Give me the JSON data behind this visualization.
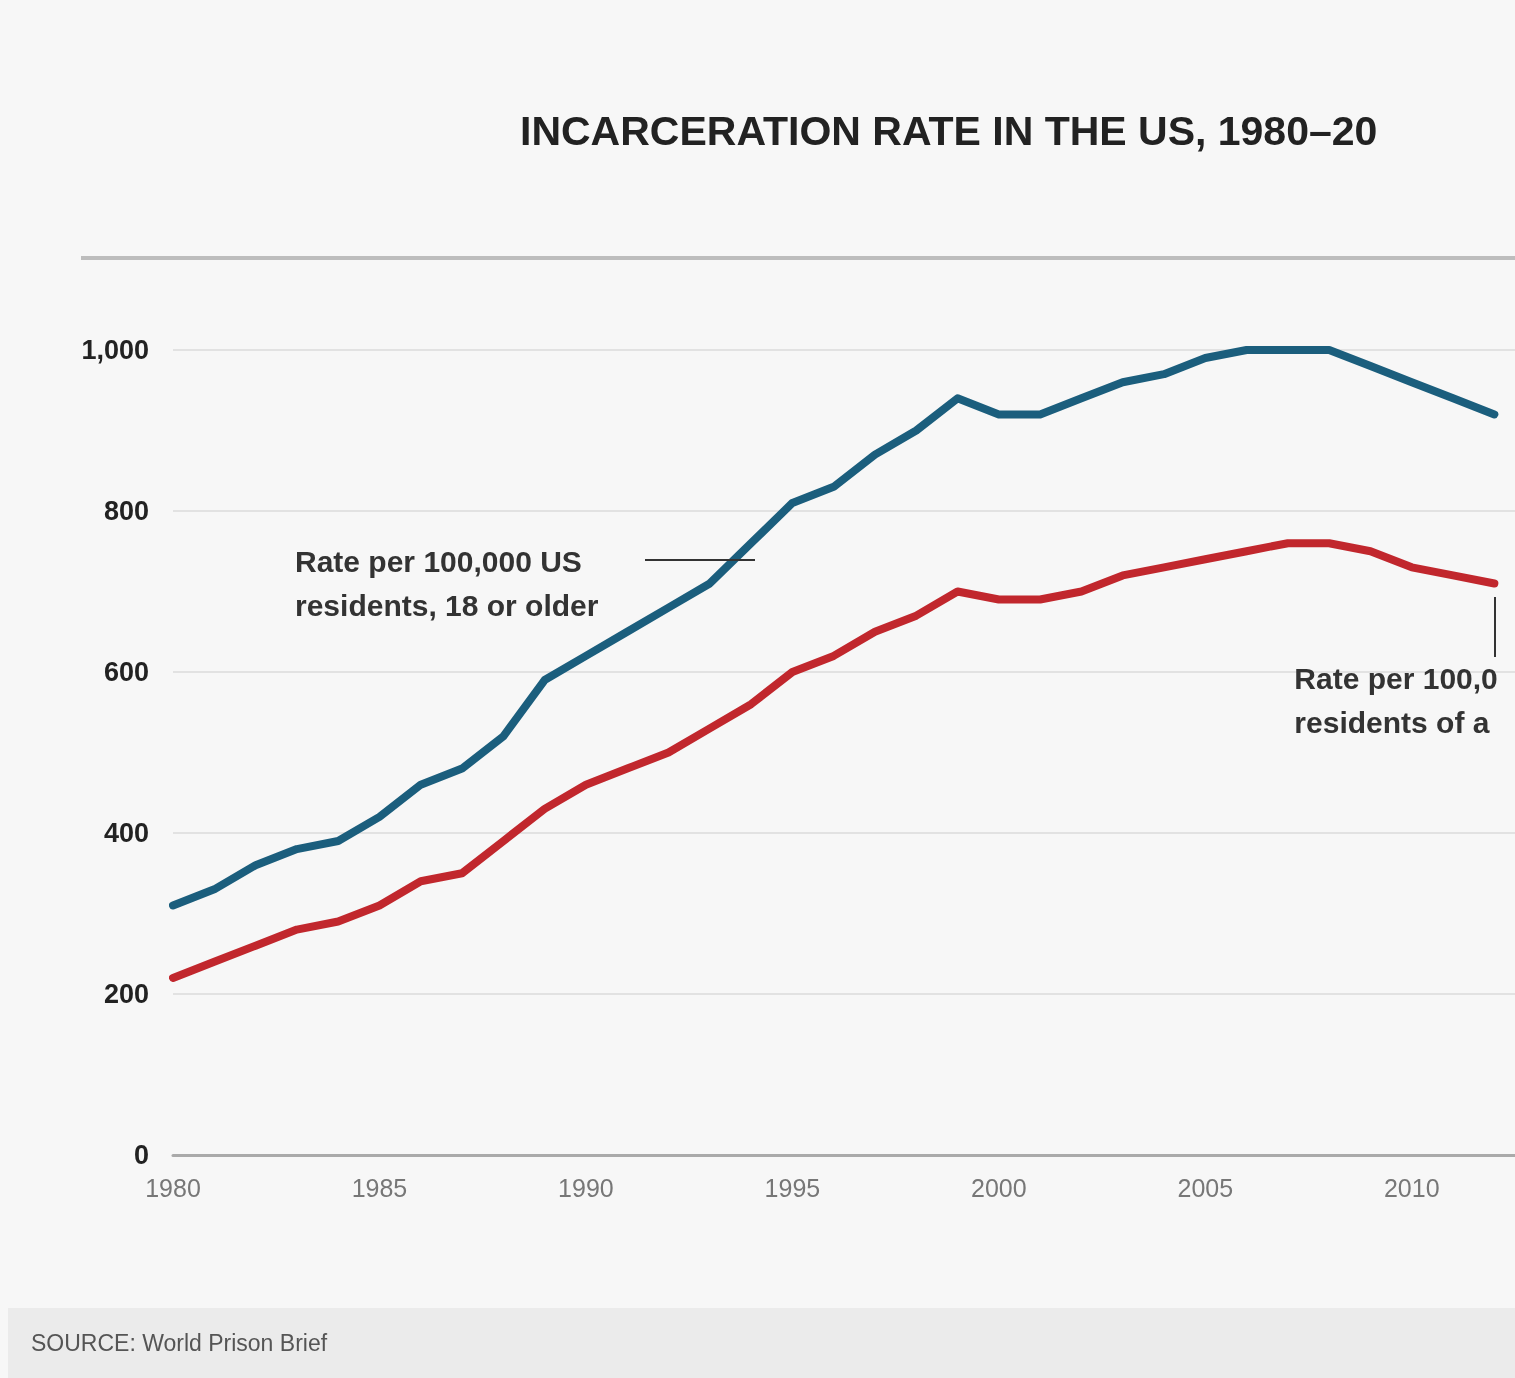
{
  "chart_data": {
    "type": "line",
    "title": "INCARCERATION RATE IN THE US, 1980–20",
    "x": [
      1980,
      1981,
      1982,
      1983,
      1984,
      1985,
      1986,
      1987,
      1988,
      1989,
      1990,
      1991,
      1992,
      1993,
      1994,
      1995,
      1996,
      1997,
      1998,
      1999,
      2000,
      2001,
      2002,
      2003,
      2004,
      2005,
      2006,
      2007,
      2008,
      2009,
      2010,
      2011,
      2012
    ],
    "series": [
      {
        "color": "#1b5e7d",
        "values": [
          310,
          330,
          360,
          380,
          390,
          420,
          460,
          480,
          520,
          590,
          620,
          650,
          680,
          710,
          760,
          810,
          830,
          870,
          900,
          940,
          920,
          920,
          940,
          960,
          970,
          990,
          1000,
          1000,
          1000,
          980,
          960,
          940,
          920
        ]
      },
      {
        "color": "#c1272d",
        "values": [
          220,
          240,
          260,
          280,
          290,
          310,
          340,
          350,
          390,
          430,
          460,
          480,
          500,
          530,
          560,
          600,
          620,
          650,
          670,
          700,
          690,
          690,
          700,
          720,
          730,
          740,
          750,
          760,
          760,
          750,
          730,
          720,
          710
        ]
      }
    ],
    "xlim": [
      1980,
      2012.5
    ],
    "xticks": [
      1980,
      1985,
      1990,
      1995,
      2000,
      2005,
      2010
    ],
    "ylim": [
      0,
      1000
    ],
    "yticks": [
      0,
      {
        "value": 200,
        "label": "200"
      },
      {
        "value": 400,
        "label": "400"
      },
      {
        "value": 600,
        "label": "600"
      },
      {
        "value": 800,
        "label": "800"
      },
      {
        "value": 1000,
        "label": "1,000"
      }
    ],
    "grid": "y",
    "marker": "none",
    "line_style": "solid",
    "annotations": [
      "Rate per 100,000 US\nresidents, 18 or older",
      {
        "text": "Rate per 100,0\nresidents of a",
        "x": 2012,
        "y": 710
      },
      "SOURCE: World Prison Brief"
    ]
  }
}
